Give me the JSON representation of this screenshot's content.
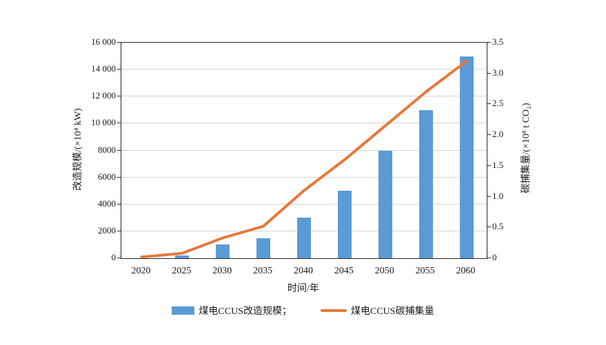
{
  "chart_data": {
    "type": "bar+line dual-axis",
    "categories": [
      "2020",
      "2025",
      "2030",
      "2035",
      "2040",
      "2045",
      "2050",
      "2055",
      "2060"
    ],
    "series": [
      {
        "name": "煤电CCUS改造规模",
        "type": "bar",
        "axis": "left",
        "color": "#5b9bd5",
        "values": [
          0,
          200,
          1000,
          1500,
          3000,
          5000,
          8000,
          11000,
          15000
        ]
      },
      {
        "name": "煤电CCUS碳捕集量",
        "type": "line",
        "axis": "right",
        "color": "#e5793a",
        "values": [
          0.02,
          0.08,
          0.33,
          0.52,
          1.1,
          1.6,
          2.15,
          2.7,
          3.2
        ]
      }
    ],
    "left_axis": {
      "label": "改造规模/(×10⁴ kW)",
      "min": 0,
      "max": 16000,
      "tick_values": [
        0,
        2000,
        4000,
        6000,
        8000,
        10000,
        12000,
        14000,
        16000
      ],
      "tick_labels": [
        "0",
        "2000",
        "4000",
        "6000",
        "8000",
        "10 000",
        "12 000",
        "14 000",
        "16 000"
      ]
    },
    "right_axis": {
      "label": "碳捕集量/(×10⁸ t CO₂)",
      "min": 0,
      "max": 3.5,
      "tick_values": [
        0,
        0.5,
        1.0,
        1.5,
        2.0,
        2.5,
        3.0,
        3.5
      ],
      "tick_labels": [
        "0",
        "0.5",
        "1.0",
        "1.5",
        "2.0",
        "2.5",
        "3.0",
        "3.5"
      ]
    },
    "xlabel": "时间/年",
    "grid": true,
    "legend_position": "bottom",
    "legend": [
      {
        "label": "煤电CCUS改造规模；",
        "swatch": "bar"
      },
      {
        "label": "煤电CCUS碳捕集量",
        "swatch": "line"
      }
    ]
  }
}
